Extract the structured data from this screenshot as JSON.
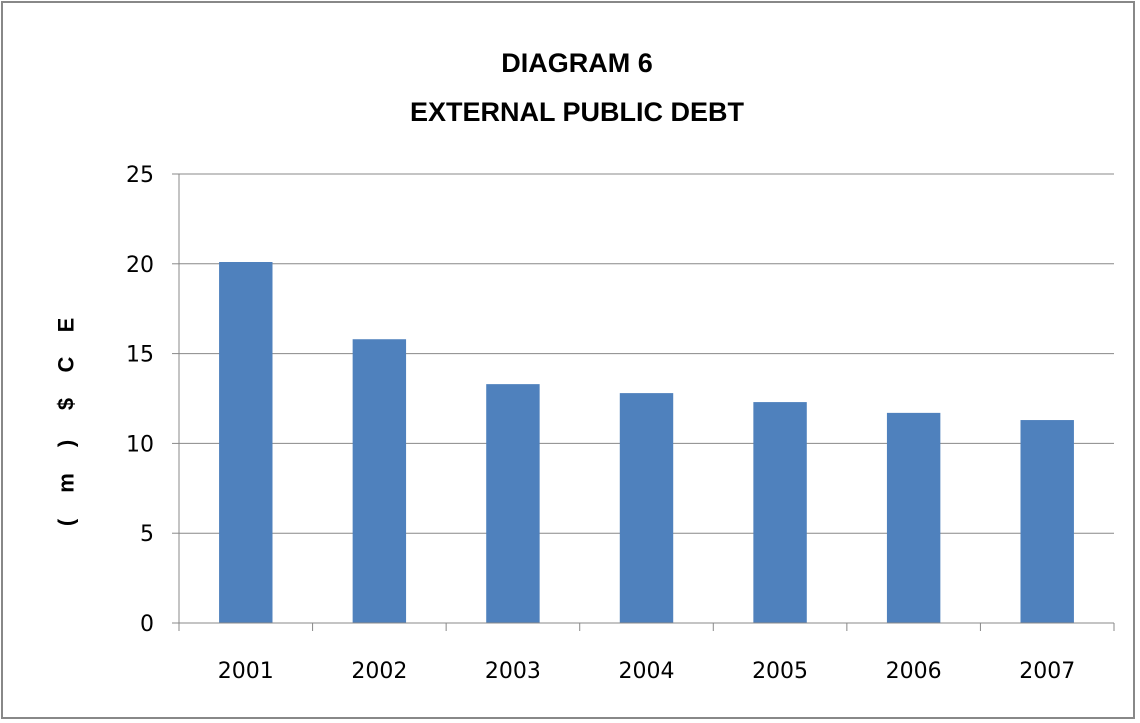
{
  "chart_data": {
    "type": "bar",
    "title_lines": [
      "DIAGRAM 6",
      "EXTERNAL PUBLIC DEBT"
    ],
    "ylabel_chars": [
      "E",
      "C",
      "$",
      ")",
      "m",
      "("
    ],
    "xlabel": "",
    "categories": [
      "2001",
      "2002",
      "2003",
      "2004",
      "2005",
      "2006",
      "2007"
    ],
    "values": [
      20.1,
      15.8,
      13.3,
      12.8,
      12.3,
      11.7,
      11.3
    ],
    "ylim": [
      0,
      25
    ],
    "yticks": [
      0,
      5,
      10,
      15,
      20,
      25
    ],
    "grid": true,
    "legend": "none",
    "bar_color": "#4F81BD",
    "grid_color": "#888888"
  }
}
